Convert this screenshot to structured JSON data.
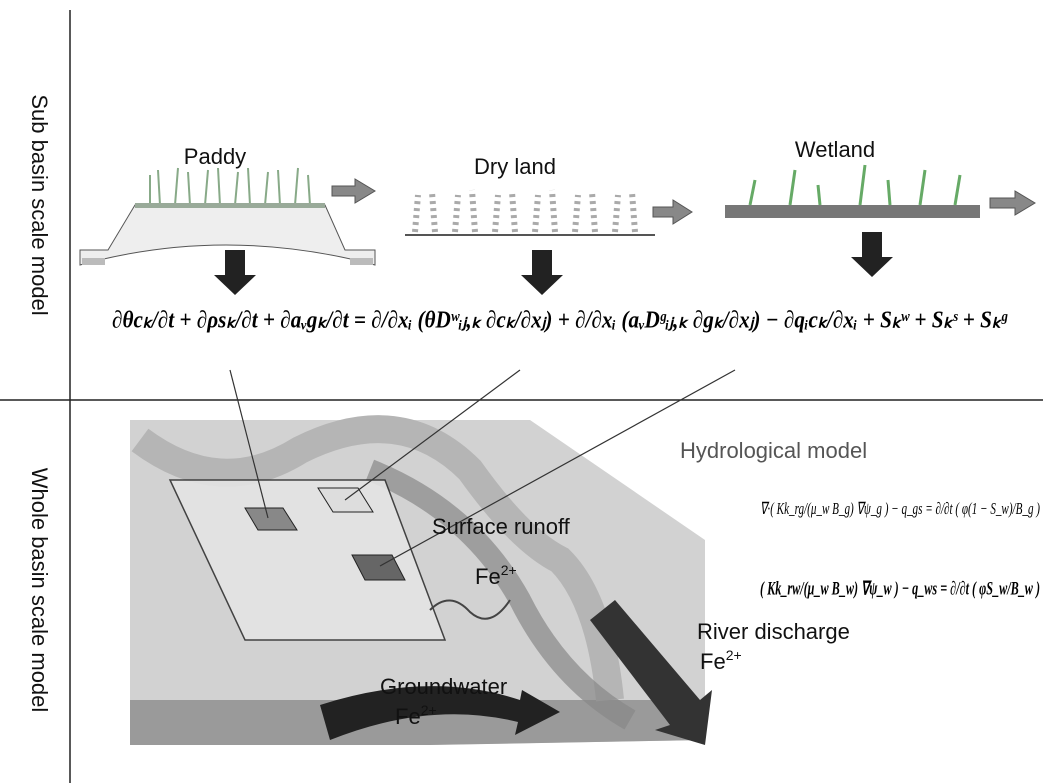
{
  "axes_labels": {
    "top": "Sub basin scale model",
    "bottom": "Whole basin scale model"
  },
  "land_uses": [
    "Paddy",
    "Dry land",
    "Wetland"
  ],
  "main_equation": "∂θcₖ/∂t + ∂ρsₖ/∂t + ∂aᵥgₖ/∂t = ∂/∂xᵢ (θDʷᵢⱼ,ₖ ∂cₖ/∂xⱼ) + ∂/∂xᵢ (aᵥDᵍᵢⱼ,ₖ ∂gₖ/∂xⱼ) − ∂qᵢcₖ/∂xᵢ + Sₖʷ + Sₖˢ + Sₖᵍ",
  "hydrological": {
    "title": "Hydrological model",
    "equations": [
      "∇·( Kk_rg/(μ_w B_g) ∇ψ_g ) − q_gs = ∂/∂t ( φ(1 − S_w)/B_g )",
      "( Kk_rw/(μ_w B_w) ∇ψ_w ) − q_ws = ∂/∂t ( φS_w/B_w )"
    ]
  },
  "flows": [
    {
      "label": "Surface runoff",
      "ion": {
        "base": "Fe",
        "sup": "2+"
      }
    },
    {
      "label": "River discharge",
      "ion": {
        "base": "Fe",
        "sup": "2+"
      }
    },
    {
      "label": "Groundwater",
      "ion": {
        "base": "Fe",
        "sup": "2+"
      }
    }
  ]
}
